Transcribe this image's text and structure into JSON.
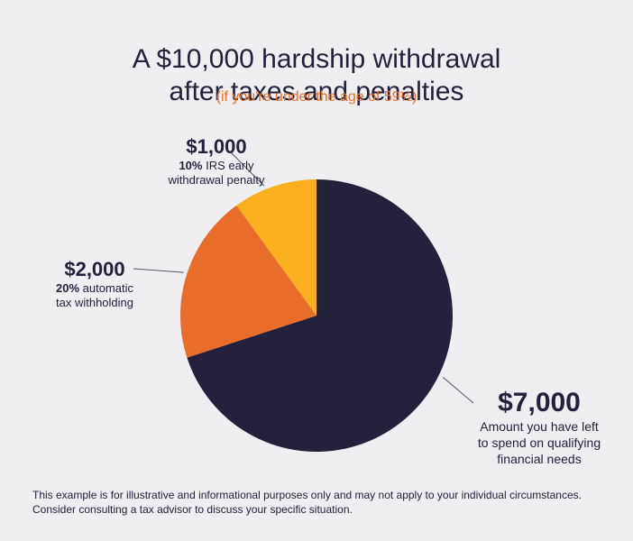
{
  "header": {
    "title_line1": "A $10,000 hardship withdrawal",
    "title_line2": "after taxes and penalties",
    "subtitle": "(if you're under the age of 59½)"
  },
  "chart_data": {
    "type": "pie",
    "total": 10000,
    "slices": [
      {
        "label": "$7,000",
        "value": 7000,
        "pct_prefix": "",
        "description": "Amount you have left to spend on qualifying financial needs",
        "color": "#23213c"
      },
      {
        "label": "$2,000",
        "value": 2000,
        "pct_prefix": "20%",
        "description": "automatic tax withholding",
        "color": "#e96d2a"
      },
      {
        "label": "$1,000",
        "value": 1000,
        "pct_prefix": "10%",
        "description": "IRS early withdrawal penalty",
        "color": "#fbb01e"
      }
    ]
  },
  "labels": {
    "penalty": {
      "amount": "$1,000",
      "pct": "10%",
      "line1": " IRS early",
      "line2": "withdrawal penalty"
    },
    "withholding": {
      "amount": "$2,000",
      "pct": "20%",
      "line1": " automatic",
      "line2": "tax withholding"
    },
    "remaining": {
      "amount": "$7,000",
      "line1": "Amount you have left",
      "line2": "to spend on qualifying",
      "line3": "financial needs"
    }
  },
  "footnote": "This example is for illustrative and informational purposes only and may not apply to your individual circumstances. Consider consulting a tax advisor to discuss your specific situation."
}
